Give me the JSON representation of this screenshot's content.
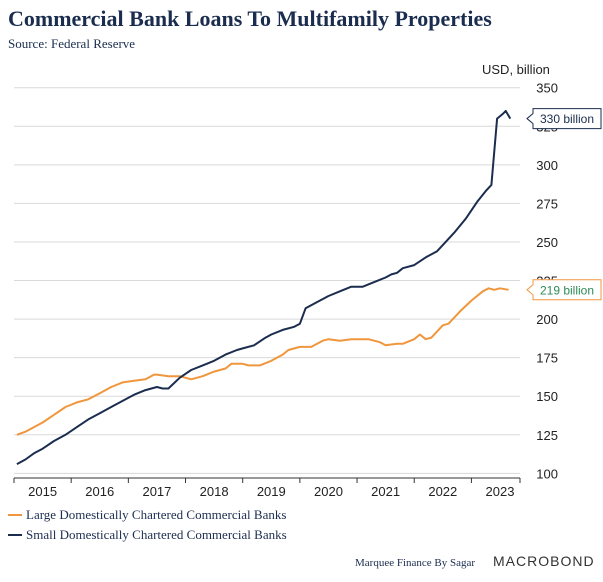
{
  "header": {
    "title": "Commercial Bank Loans To Multifamily Properties",
    "source": "Source: Federal Reserve"
  },
  "footer": {
    "credit": "Marquee Finance By Sagar",
    "brand": "MACROBOND"
  },
  "chart_data": {
    "type": "line",
    "unit_label": "USD, billion",
    "xlim": [
      2014.5,
      2023.35
    ],
    "ylim": [
      97,
      355
    ],
    "x_ticks": [
      2015,
      2016,
      2017,
      2018,
      2019,
      2020,
      2021,
      2022,
      2023
    ],
    "x_tick_labels": [
      "2015",
      "2016",
      "2017",
      "2018",
      "2019",
      "2020",
      "2021",
      "2022",
      "2023"
    ],
    "y_ticks": [
      100,
      125,
      150,
      175,
      200,
      225,
      250,
      275,
      300,
      325,
      350
    ],
    "y_tick_labels": [
      "100",
      "125",
      "150",
      "175",
      "200",
      "225",
      "250",
      "275",
      "300",
      "325",
      "350"
    ],
    "grid": "horizontal",
    "legend_position": "bottom-left",
    "series": [
      {
        "name": "Large Domestically Chartered Commercial Banks",
        "color": "#f0963c",
        "end_label": "219 billion",
        "points": [
          [
            2014.55,
            125
          ],
          [
            2014.7,
            127
          ],
          [
            2014.85,
            130
          ],
          [
            2015.0,
            133
          ],
          [
            2015.2,
            138
          ],
          [
            2015.4,
            143
          ],
          [
            2015.6,
            146
          ],
          [
            2015.8,
            148
          ],
          [
            2016.0,
            152
          ],
          [
            2016.2,
            156
          ],
          [
            2016.4,
            159
          ],
          [
            2016.6,
            160
          ],
          [
            2016.8,
            161
          ],
          [
            2016.95,
            164
          ],
          [
            2017.0,
            164
          ],
          [
            2017.2,
            163
          ],
          [
            2017.4,
            163
          ],
          [
            2017.6,
            161
          ],
          [
            2017.8,
            163
          ],
          [
            2018.0,
            166
          ],
          [
            2018.2,
            168
          ],
          [
            2018.3,
            171
          ],
          [
            2018.5,
            171
          ],
          [
            2018.6,
            170
          ],
          [
            2018.8,
            170
          ],
          [
            2019.0,
            173
          ],
          [
            2019.2,
            177
          ],
          [
            2019.3,
            180
          ],
          [
            2019.5,
            182
          ],
          [
            2019.7,
            182
          ],
          [
            2019.9,
            186
          ],
          [
            2020.0,
            187
          ],
          [
            2020.2,
            186
          ],
          [
            2020.4,
            187
          ],
          [
            2020.6,
            187
          ],
          [
            2020.7,
            187
          ],
          [
            2020.9,
            185
          ],
          [
            2021.0,
            183
          ],
          [
            2021.2,
            184
          ],
          [
            2021.3,
            184
          ],
          [
            2021.5,
            187
          ],
          [
            2021.6,
            190
          ],
          [
            2021.7,
            187
          ],
          [
            2021.8,
            188
          ],
          [
            2021.9,
            192
          ],
          [
            2022.0,
            196
          ],
          [
            2022.1,
            197
          ],
          [
            2022.3,
            205
          ],
          [
            2022.5,
            212
          ],
          [
            2022.7,
            218
          ],
          [
            2022.8,
            220
          ],
          [
            2022.9,
            219
          ],
          [
            2023.0,
            220
          ],
          [
            2023.15,
            219
          ]
        ]
      },
      {
        "name": "Small Domestically Chartered Commercial Banks",
        "color": "#1b2d4f",
        "end_label": "330 billion",
        "points": [
          [
            2014.55,
            106
          ],
          [
            2014.7,
            109
          ],
          [
            2014.85,
            113
          ],
          [
            2015.0,
            116
          ],
          [
            2015.2,
            121
          ],
          [
            2015.4,
            125
          ],
          [
            2015.6,
            130
          ],
          [
            2015.8,
            135
          ],
          [
            2016.0,
            139
          ],
          [
            2016.2,
            143
          ],
          [
            2016.4,
            147
          ],
          [
            2016.6,
            151
          ],
          [
            2016.8,
            154
          ],
          [
            2017.0,
            156
          ],
          [
            2017.1,
            155
          ],
          [
            2017.2,
            155
          ],
          [
            2017.4,
            162
          ],
          [
            2017.6,
            167
          ],
          [
            2017.8,
            170
          ],
          [
            2018.0,
            173
          ],
          [
            2018.2,
            177
          ],
          [
            2018.4,
            180
          ],
          [
            2018.5,
            181
          ],
          [
            2018.7,
            183
          ],
          [
            2018.9,
            188
          ],
          [
            2019.0,
            190
          ],
          [
            2019.2,
            193
          ],
          [
            2019.4,
            195
          ],
          [
            2019.5,
            197
          ],
          [
            2019.6,
            207
          ],
          [
            2019.8,
            211
          ],
          [
            2020.0,
            215
          ],
          [
            2020.2,
            218
          ],
          [
            2020.4,
            221
          ],
          [
            2020.6,
            221
          ],
          [
            2020.8,
            224
          ],
          [
            2021.0,
            227
          ],
          [
            2021.1,
            229
          ],
          [
            2021.2,
            230
          ],
          [
            2021.3,
            233
          ],
          [
            2021.5,
            235
          ],
          [
            2021.7,
            240
          ],
          [
            2021.9,
            244
          ],
          [
            2022.0,
            248
          ],
          [
            2022.2,
            256
          ],
          [
            2022.4,
            265
          ],
          [
            2022.6,
            276
          ],
          [
            2022.75,
            283
          ],
          [
            2022.85,
            287
          ],
          [
            2022.95,
            330
          ],
          [
            2023.05,
            333
          ],
          [
            2023.1,
            335
          ],
          [
            2023.18,
            330
          ]
        ]
      }
    ]
  }
}
